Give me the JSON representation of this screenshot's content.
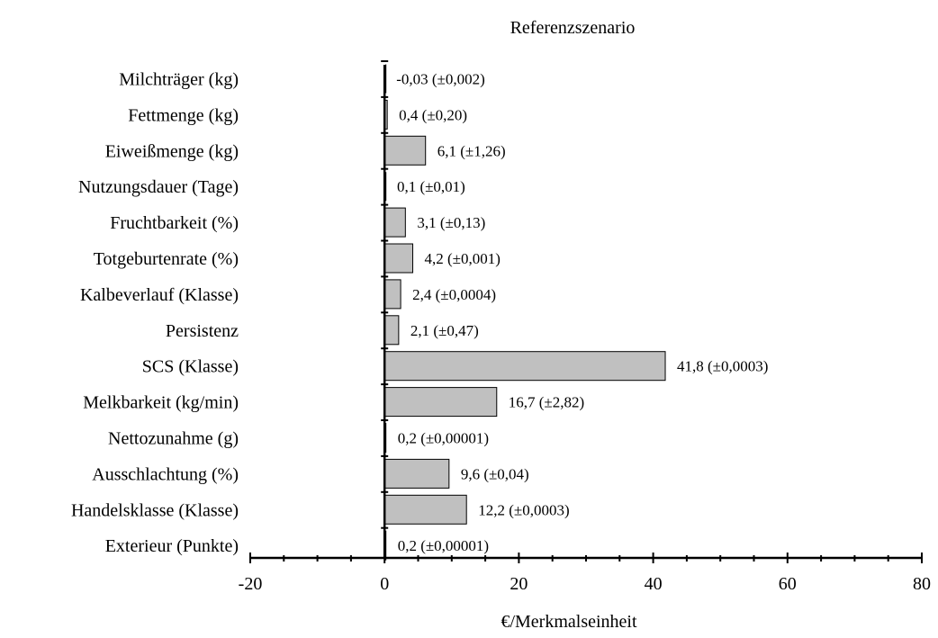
{
  "chart_data": {
    "type": "bar",
    "orientation": "horizontal",
    "title": "Referenzszenario",
    "xlabel": "€/Merkmalseinheit",
    "ylabel": "",
    "xlim": [
      -20,
      80
    ],
    "xticks": [
      -20,
      0,
      20,
      40,
      60,
      80
    ],
    "xtick_labels": [
      "-20",
      "0",
      "20",
      "40",
      "60",
      "80"
    ],
    "grid": false,
    "legend": "none",
    "bar_color": "#c0c0c0",
    "bar_edge_color": "#000000",
    "categories": [
      "Milchträger (kg)",
      "Fettmenge (kg)",
      "Eiweißmenge (kg)",
      "Nutzungsdauer (Tage)",
      "Fruchtbarkeit (%)",
      "Totgeburtenrate (%)",
      "Kalbeverlauf (Klasse)",
      "Persistenz",
      "SCS (Klasse)",
      "Melkbarkeit (kg/min)",
      "Nettozunahme (g)",
      "Ausschlachtung (%)",
      "Handelsklasse (Klasse)",
      "Exterieur (Punkte)"
    ],
    "values": [
      -0.03,
      0.4,
      6.1,
      0.1,
      3.1,
      4.2,
      2.4,
      2.1,
      41.8,
      16.7,
      0.2,
      9.6,
      12.2,
      0.2
    ],
    "data_labels": [
      "-0,03 (±0,002)",
      "0,4 (±0,20)",
      "6,1 (±1,26)",
      "0,1 (±0,01)",
      "3,1 (±0,13)",
      "4,2 (±0,001)",
      "2,4 (±0,0004)",
      "2,1 (±0,47)",
      "41,8 (±0,0003)",
      "16,7 (±2,82)",
      "0,2 (±0,00001)",
      "9,6 (±0,04)",
      "12,2 (±0,0003)",
      "0,2 (±0,00001)"
    ]
  }
}
